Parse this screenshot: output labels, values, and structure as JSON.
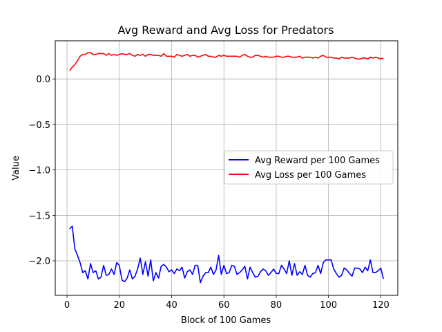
{
  "chart_data": {
    "type": "line",
    "title": "Avg Reward and Avg Loss for Predators",
    "xlabel": "Block of 100 Games",
    "ylabel": "Value",
    "xlim": [
      -4.5,
      126.5
    ],
    "ylim": [
      -2.38,
      0.42
    ],
    "xticks": [
      0,
      20,
      40,
      60,
      80,
      100,
      120
    ],
    "yticks": [
      -2.0,
      -1.5,
      -1.0,
      -0.5,
      0.0
    ],
    "ytick_labels": [
      "−2.0",
      "−1.5",
      "−1.0",
      "−0.5",
      "0.0"
    ],
    "grid": true,
    "legend_position": "center-right",
    "series": [
      {
        "name": "Avg Reward per 100 Games",
        "color": "#0000ff",
        "x": [
          1,
          2,
          3,
          4,
          5,
          6,
          7,
          8,
          9,
          10,
          11,
          12,
          13,
          14,
          15,
          16,
          17,
          18,
          19,
          20,
          21,
          22,
          23,
          24,
          25,
          26,
          27,
          28,
          29,
          30,
          31,
          32,
          33,
          34,
          35,
          36,
          37,
          38,
          39,
          40,
          41,
          42,
          43,
          44,
          45,
          46,
          47,
          48,
          49,
          50,
          51,
          52,
          53,
          54,
          55,
          56,
          57,
          58,
          59,
          60,
          61,
          62,
          63,
          64,
          65,
          66,
          67,
          68,
          69,
          70,
          71,
          72,
          73,
          74,
          75,
          76,
          77,
          78,
          79,
          80,
          81,
          82,
          83,
          84,
          85,
          86,
          87,
          88,
          89,
          90,
          91,
          92,
          93,
          94,
          95,
          96,
          97,
          98,
          99,
          100,
          101,
          102,
          103,
          104,
          105,
          106,
          107,
          108,
          109,
          110,
          111,
          112,
          113,
          114,
          115,
          116,
          117,
          118,
          119,
          120,
          121
        ],
        "values": [
          -1.65,
          -1.62,
          -1.87,
          -1.94,
          -2.02,
          -2.13,
          -2.11,
          -2.2,
          -2.03,
          -2.13,
          -2.11,
          -2.2,
          -2.18,
          -2.05,
          -2.16,
          -2.15,
          -2.09,
          -2.15,
          -2.02,
          -2.05,
          -2.21,
          -2.23,
          -2.19,
          -2.1,
          -2.2,
          -2.17,
          -2.09,
          -1.97,
          -2.15,
          -2.01,
          -2.17,
          -1.99,
          -2.22,
          -2.13,
          -2.19,
          -2.06,
          -2.04,
          -2.07,
          -2.12,
          -2.1,
          -2.14,
          -2.09,
          -2.11,
          -2.07,
          -2.19,
          -2.12,
          -2.1,
          -2.15,
          -2.05,
          -2.05,
          -2.24,
          -2.17,
          -2.13,
          -2.13,
          -2.07,
          -2.15,
          -2.1,
          -1.94,
          -2.15,
          -2.05,
          -2.14,
          -2.13,
          -2.05,
          -2.06,
          -2.15,
          -2.13,
          -2.1,
          -2.06,
          -2.2,
          -2.07,
          -2.13,
          -2.18,
          -2.17,
          -2.12,
          -2.09,
          -2.11,
          -2.16,
          -2.13,
          -2.09,
          -2.14,
          -2.14,
          -2.05,
          -2.09,
          -2.14,
          -2.0,
          -2.16,
          -2.03,
          -2.16,
          -2.12,
          -2.15,
          -2.05,
          -2.16,
          -2.18,
          -2.14,
          -2.13,
          -2.05,
          -2.14,
          -2.02,
          -1.99,
          -1.99,
          -1.99,
          -2.09,
          -2.14,
          -2.18,
          -2.16,
          -2.08,
          -2.1,
          -2.14,
          -2.17,
          -2.08,
          -2.08,
          -2.09,
          -2.13,
          -2.07,
          -2.11,
          -1.99,
          -2.13,
          -2.13,
          -2.11,
          -2.08,
          -2.2
        ]
      },
      {
        "name": "Avg Loss per 100 Games",
        "color": "#ff0000",
        "x": [
          1,
          2,
          3,
          4,
          5,
          6,
          7,
          8,
          9,
          10,
          11,
          12,
          13,
          14,
          15,
          16,
          17,
          18,
          19,
          20,
          21,
          22,
          23,
          24,
          25,
          26,
          27,
          28,
          29,
          30,
          31,
          32,
          33,
          34,
          35,
          36,
          37,
          38,
          39,
          40,
          41,
          42,
          43,
          44,
          45,
          46,
          47,
          48,
          49,
          50,
          51,
          52,
          53,
          54,
          55,
          56,
          57,
          58,
          59,
          60,
          61,
          62,
          63,
          64,
          65,
          66,
          67,
          68,
          69,
          70,
          71,
          72,
          73,
          74,
          75,
          76,
          77,
          78,
          79,
          80,
          81,
          82,
          83,
          84,
          85,
          86,
          87,
          88,
          89,
          90,
          91,
          92,
          93,
          94,
          95,
          96,
          97,
          98,
          99,
          100,
          101,
          102,
          103,
          104,
          105,
          106,
          107,
          108,
          109,
          110,
          111,
          112,
          113,
          114,
          115,
          116,
          117,
          118,
          119,
          120,
          121
        ],
        "values": [
          0.09,
          0.13,
          0.16,
          0.2,
          0.25,
          0.27,
          0.27,
          0.29,
          0.29,
          0.27,
          0.27,
          0.28,
          0.28,
          0.28,
          0.26,
          0.28,
          0.26,
          0.27,
          0.26,
          0.27,
          0.28,
          0.27,
          0.27,
          0.28,
          0.26,
          0.25,
          0.27,
          0.26,
          0.27,
          0.25,
          0.27,
          0.27,
          0.26,
          0.26,
          0.26,
          0.25,
          0.28,
          0.25,
          0.25,
          0.25,
          0.24,
          0.27,
          0.26,
          0.25,
          0.26,
          0.27,
          0.25,
          0.26,
          0.26,
          0.24,
          0.25,
          0.26,
          0.27,
          0.25,
          0.25,
          0.24,
          0.24,
          0.26,
          0.25,
          0.26,
          0.25,
          0.25,
          0.25,
          0.25,
          0.25,
          0.24,
          0.26,
          0.27,
          0.25,
          0.24,
          0.24,
          0.26,
          0.26,
          0.25,
          0.24,
          0.25,
          0.24,
          0.24,
          0.24,
          0.25,
          0.25,
          0.24,
          0.24,
          0.25,
          0.25,
          0.24,
          0.24,
          0.24,
          0.25,
          0.23,
          0.24,
          0.24,
          0.24,
          0.23,
          0.24,
          0.23,
          0.25,
          0.26,
          0.24,
          0.24,
          0.24,
          0.23,
          0.23,
          0.22,
          0.24,
          0.23,
          0.23,
          0.23,
          0.24,
          0.23,
          0.22,
          0.22,
          0.23,
          0.23,
          0.22,
          0.24,
          0.23,
          0.24,
          0.23,
          0.22,
          0.23
        ]
      }
    ]
  }
}
